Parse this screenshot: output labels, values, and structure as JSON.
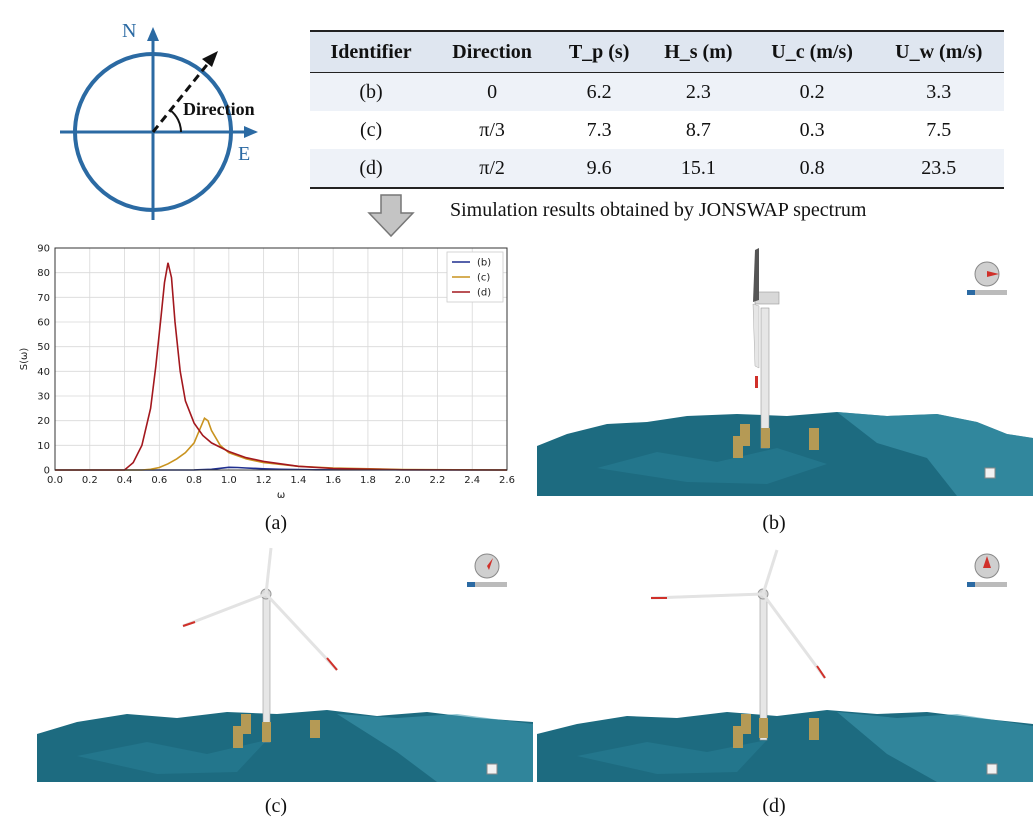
{
  "compass": {
    "north_label": "N",
    "east_label": "E",
    "direction_label": "Direction"
  },
  "table": {
    "headers": [
      "Identifier",
      "Direction",
      "T_p (s)",
      "H_s (m)",
      "U_c (m/s)",
      "U_w (m/s)"
    ],
    "rows": [
      [
        "(b)",
        "0",
        "6.2",
        "2.3",
        "0.2",
        "3.3"
      ],
      [
        "(c)",
        "π/3",
        "7.3",
        "8.7",
        "0.3",
        "7.5"
      ],
      [
        "(d)",
        "π/2",
        "9.6",
        "15.1",
        "0.8",
        "23.5"
      ]
    ]
  },
  "sim_caption": "Simulation results obtained by JONSWAP spectrum",
  "panel_labels": {
    "a": "(a)",
    "b": "(b)",
    "c": "(c)",
    "d": "(d)"
  },
  "scene_colors": {
    "sea": "#1d6b80",
    "sea_light": "#3f9ab0",
    "tower": "#e6e6e6",
    "pile": "#b59a55",
    "blade_tip": "#d0302a"
  },
  "chart_data": {
    "type": "line",
    "xlabel": "ω",
    "ylabel": "S(ω)",
    "xlim": [
      0.0,
      2.6
    ],
    "ylim": [
      0,
      90
    ],
    "xticks": [
      "0.0",
      "0.2",
      "0.4",
      "0.6",
      "0.8",
      "1.0",
      "1.2",
      "1.4",
      "1.6",
      "1.8",
      "2.0",
      "2.2",
      "2.4",
      "2.6"
    ],
    "yticks": [
      "0",
      "10",
      "20",
      "30",
      "40",
      "50",
      "60",
      "70",
      "80",
      "90"
    ],
    "grid": true,
    "legend_position": "top-right",
    "series": [
      {
        "name": "(b)",
        "color": "#1f2f8f",
        "x": [
          0.0,
          0.7,
          0.8,
          0.9,
          0.95,
          1.0,
          1.05,
          1.1,
          1.2,
          1.3,
          1.5,
          2.6
        ],
        "y": [
          0,
          0,
          0.05,
          0.3,
          0.7,
          1.1,
          1.0,
          0.8,
          0.5,
          0.3,
          0.1,
          0
        ]
      },
      {
        "name": "(c)",
        "color": "#c9931f",
        "x": [
          0.0,
          0.5,
          0.55,
          0.6,
          0.65,
          0.7,
          0.75,
          0.8,
          0.83,
          0.86,
          0.88,
          0.9,
          0.95,
          1.0,
          1.1,
          1.2,
          1.4,
          1.6,
          2.0,
          2.6
        ],
        "y": [
          0,
          0,
          0.3,
          1.0,
          2.5,
          4.5,
          7.0,
          11.0,
          16.0,
          21.0,
          20.0,
          16.0,
          10.0,
          7.0,
          4.5,
          3.0,
          1.5,
          0.8,
          0.2,
          0
        ]
      },
      {
        "name": "(d)",
        "color": "#a3181e",
        "x": [
          0.0,
          0.4,
          0.45,
          0.5,
          0.55,
          0.58,
          0.61,
          0.63,
          0.65,
          0.67,
          0.69,
          0.72,
          0.75,
          0.8,
          0.85,
          0.9,
          1.0,
          1.1,
          1.2,
          1.4,
          1.6,
          2.0,
          2.6
        ],
        "y": [
          0,
          0,
          3,
          10,
          25,
          42,
          62,
          76,
          84,
          78,
          60,
          40,
          28,
          19,
          14,
          11,
          7.5,
          5,
          3.5,
          1.5,
          0.6,
          0.1,
          0
        ]
      }
    ]
  }
}
